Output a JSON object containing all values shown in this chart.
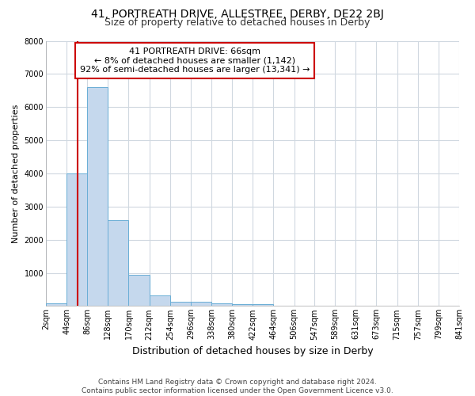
{
  "title": "41, PORTREATH DRIVE, ALLESTREE, DERBY, DE22 2BJ",
  "subtitle": "Size of property relative to detached houses in Derby",
  "xlabel": "Distribution of detached houses by size in Derby",
  "ylabel": "Number of detached properties",
  "footer": "Contains HM Land Registry data © Crown copyright and database right 2024.\nContains public sector information licensed under the Open Government Licence v3.0.",
  "property_size": 66,
  "annotation_title": "41 PORTREATH DRIVE: 66sqm",
  "annotation_line1": "← 8% of detached houses are smaller (1,142)",
  "annotation_line2": "92% of semi-detached houses are larger (13,341) →",
  "bar_color": "#c5d8ed",
  "bar_edge_color": "#6aaed6",
  "vline_color": "#cc0000",
  "annotation_box_color": "#cc0000",
  "fig_background_color": "#ffffff",
  "plot_background_color": "#ffffff",
  "grid_color": "#d0d8e0",
  "bin_edges": [
    2,
    44,
    86,
    128,
    170,
    212,
    254,
    296,
    338,
    380,
    422,
    464,
    506,
    547,
    589,
    631,
    673,
    715,
    757,
    799,
    841
  ],
  "bin_heights": [
    70,
    4000,
    6600,
    2600,
    950,
    330,
    140,
    120,
    80,
    65,
    55,
    0,
    0,
    0,
    0,
    0,
    0,
    0,
    0,
    0
  ],
  "ylim": [
    0,
    8000
  ],
  "yticks": [
    0,
    1000,
    2000,
    3000,
    4000,
    5000,
    6000,
    7000,
    8000
  ],
  "tick_labels": [
    "2sqm",
    "44sqm",
    "86sqm",
    "128sqm",
    "170sqm",
    "212sqm",
    "254sqm",
    "296sqm",
    "338sqm",
    "380sqm",
    "422sqm",
    "464sqm",
    "506sqm",
    "547sqm",
    "589sqm",
    "631sqm",
    "673sqm",
    "715sqm",
    "757sqm",
    "799sqm",
    "841sqm"
  ],
  "title_fontsize": 10,
  "subtitle_fontsize": 9,
  "xlabel_fontsize": 9,
  "ylabel_fontsize": 8,
  "footer_fontsize": 6.5,
  "annot_fontsize": 8,
  "tick_fontsize": 7
}
